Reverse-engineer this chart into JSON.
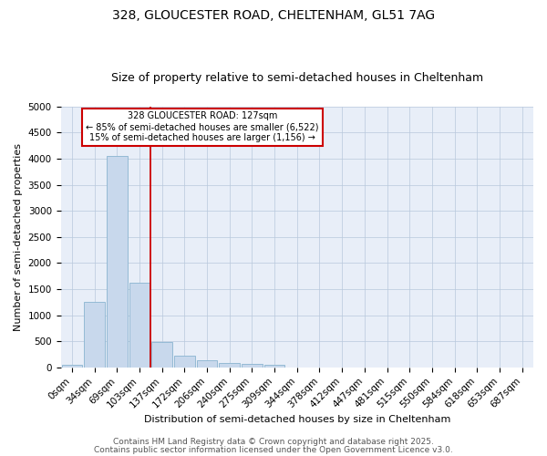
{
  "title": "328, GLOUCESTER ROAD, CHELTENHAM, GL51 7AG",
  "subtitle": "Size of property relative to semi-detached houses in Cheltenham",
  "xlabel": "Distribution of semi-detached houses by size in Cheltenham",
  "ylabel": "Number of semi-detached properties",
  "bar_labels": [
    "0sqm",
    "34sqm",
    "69sqm",
    "103sqm",
    "137sqm",
    "172sqm",
    "206sqm",
    "240sqm",
    "275sqm",
    "309sqm",
    "344sqm",
    "378sqm",
    "412sqm",
    "447sqm",
    "481sqm",
    "515sqm",
    "550sqm",
    "584sqm",
    "618sqm",
    "653sqm",
    "687sqm"
  ],
  "bar_values": [
    50,
    1250,
    4050,
    1630,
    480,
    220,
    130,
    90,
    70,
    50,
    0,
    0,
    0,
    0,
    0,
    0,
    0,
    0,
    0,
    0,
    0
  ],
  "bar_color": "#c8d8ec",
  "bar_edgecolor": "#8ab4d0",
  "red_line_x": 3.5,
  "red_line_color": "#cc0000",
  "ylim": [
    0,
    5000
  ],
  "yticks": [
    0,
    500,
    1000,
    1500,
    2000,
    2500,
    3000,
    3500,
    4000,
    4500,
    5000
  ],
  "legend_title": "328 GLOUCESTER ROAD: 127sqm",
  "legend_line1": "← 85% of semi-detached houses are smaller (6,522)",
  "legend_line2": "15% of semi-detached houses are larger (1,156) →",
  "legend_box_color": "#ffffff",
  "legend_box_edgecolor": "#cc0000",
  "footer1": "Contains HM Land Registry data © Crown copyright and database right 2025.",
  "footer2": "Contains public sector information licensed under the Open Government Licence v3.0.",
  "bg_color": "#e8eef8",
  "title_fontsize": 10,
  "subtitle_fontsize": 9,
  "xlabel_fontsize": 8,
  "ylabel_fontsize": 8,
  "tick_fontsize": 7.5,
  "footer_fontsize": 6.5
}
